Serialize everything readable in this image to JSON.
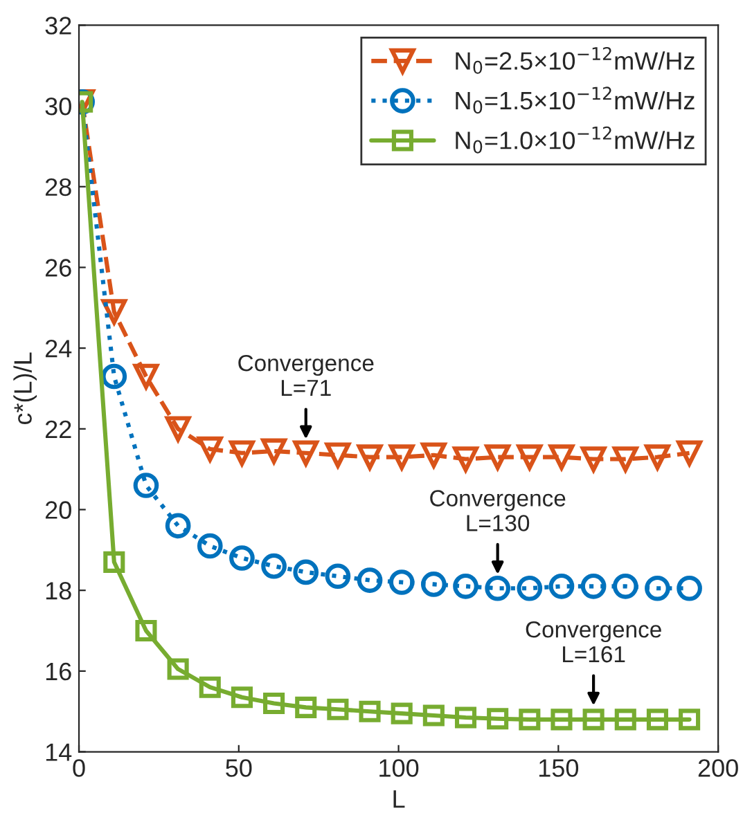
{
  "chart_data": {
    "type": "line",
    "xlabel": "L",
    "ylabel": "c*(L)/L",
    "x": [
      1,
      11,
      21,
      31,
      41,
      51,
      61,
      71,
      81,
      91,
      101,
      111,
      121,
      131,
      141,
      151,
      161,
      171,
      181,
      191
    ],
    "series": [
      {
        "name": "N$_{0}$=2.5×10$^{−12}$mW/Hz",
        "color": "#d95319",
        "marker": "triangle",
        "line_style": "dashed",
        "values": [
          30.1,
          24.9,
          23.3,
          22.0,
          21.5,
          21.4,
          21.45,
          21.4,
          21.35,
          21.3,
          21.3,
          21.35,
          21.25,
          21.3,
          21.3,
          21.3,
          21.25,
          21.25,
          21.3,
          21.4
        ]
      },
      {
        "name": "N$_{0}$=1.5×10$^{−12}$mW/Hz",
        "color": "#0072bd",
        "marker": "circle",
        "line_style": "dotted",
        "values": [
          30.1,
          23.3,
          20.6,
          19.6,
          19.1,
          18.8,
          18.6,
          18.45,
          18.35,
          18.25,
          18.2,
          18.15,
          18.1,
          18.05,
          18.05,
          18.1,
          18.1,
          18.1,
          18.05,
          18.05
        ]
      },
      {
        "name": "N$_{0}$=1.0×10$^{−12}$mW/Hz",
        "color": "#77ac30",
        "marker": "square",
        "line_style": "solid",
        "values": [
          30.1,
          18.7,
          17.0,
          16.05,
          15.6,
          15.35,
          15.2,
          15.1,
          15.05,
          15.0,
          14.95,
          14.9,
          14.85,
          14.82,
          14.8,
          14.8,
          14.8,
          14.8,
          14.8,
          14.8
        ]
      }
    ],
    "annotations": [
      {
        "text": "Convergence\nL=71",
        "x": 71,
        "y": 21.4
      },
      {
        "text": "Convergence\nL=130",
        "x": 131,
        "y": 18.05
      },
      {
        "text": "Convergence\nL=161",
        "x": 161,
        "y": 14.8
      }
    ],
    "xlim": [
      0,
      200
    ],
    "xticks": [
      0,
      50,
      100,
      150,
      200
    ],
    "ylim": [
      14,
      32
    ],
    "yticks": [
      14,
      16,
      18,
      20,
      22,
      24,
      26,
      28,
      30,
      32
    ],
    "grid": false,
    "legend": "top right"
  }
}
